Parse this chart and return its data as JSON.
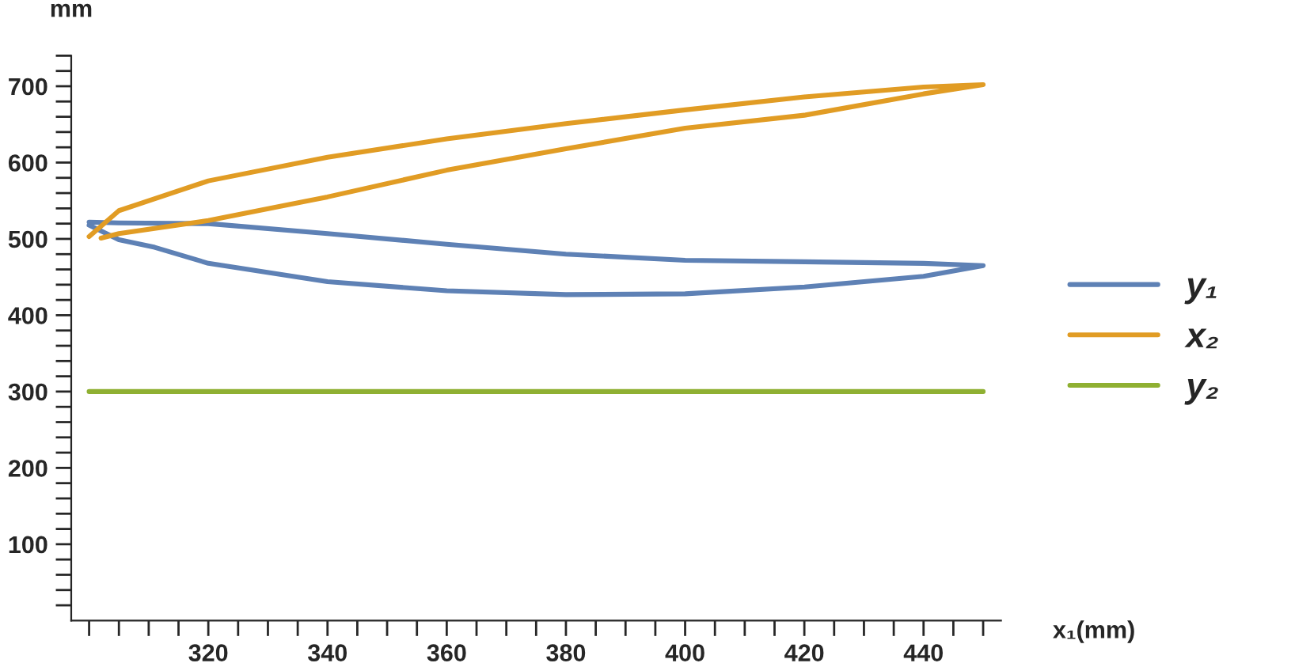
{
  "chart_data": {
    "type": "line",
    "xlabel": "x₁(mm)",
    "ylabel": "mm",
    "xlim": [
      297,
      453
    ],
    "ylim": [
      0,
      740
    ],
    "xticks": [
      {
        "value": 300,
        "label": null
      },
      {
        "value": 305,
        "label": null
      },
      {
        "value": 310,
        "label": null
      },
      {
        "value": 315,
        "label": null
      },
      320,
      {
        "value": 325,
        "label": null
      },
      {
        "value": 330,
        "label": null
      },
      {
        "value": 335,
        "label": null
      },
      340,
      {
        "value": 345,
        "label": null
      },
      {
        "value": 350,
        "label": null
      },
      {
        "value": 355,
        "label": null
      },
      360,
      {
        "value": 365,
        "label": null
      },
      {
        "value": 370,
        "label": null
      },
      {
        "value": 375,
        "label": null
      },
      380,
      {
        "value": 385,
        "label": null
      },
      {
        "value": 390,
        "label": null
      },
      {
        "value": 395,
        "label": null
      },
      400,
      {
        "value": 405,
        "label": null
      },
      {
        "value": 410,
        "label": null
      },
      {
        "value": 415,
        "label": null
      },
      420,
      {
        "value": 425,
        "label": null
      },
      {
        "value": 430,
        "label": null
      },
      {
        "value": 435,
        "label": null
      },
      440,
      {
        "value": 445,
        "label": null
      },
      {
        "value": 450,
        "label": null
      }
    ],
    "yticks": [
      {
        "value": 20,
        "label": null
      },
      {
        "value": 40,
        "label": null
      },
      {
        "value": 60,
        "label": null
      },
      {
        "value": 80,
        "label": null
      },
      100,
      {
        "value": 120,
        "label": null
      },
      {
        "value": 140,
        "label": null
      },
      {
        "value": 160,
        "label": null
      },
      {
        "value": 180,
        "label": null
      },
      200,
      {
        "value": 220,
        "label": null
      },
      {
        "value": 240,
        "label": null
      },
      {
        "value": 260,
        "label": null
      },
      {
        "value": 280,
        "label": null
      },
      300,
      {
        "value": 320,
        "label": null
      },
      {
        "value": 340,
        "label": null
      },
      {
        "value": 360,
        "label": null
      },
      {
        "value": 380,
        "label": null
      },
      400,
      {
        "value": 420,
        "label": null
      },
      {
        "value": 440,
        "label": null
      },
      {
        "value": 460,
        "label": null
      },
      {
        "value": 480,
        "label": null
      },
      500,
      {
        "value": 520,
        "label": null
      },
      {
        "value": 540,
        "label": null
      },
      {
        "value": 560,
        "label": null
      },
      {
        "value": 580,
        "label": null
      },
      600,
      {
        "value": 620,
        "label": null
      },
      {
        "value": 640,
        "label": null
      },
      {
        "value": 660,
        "label": null
      },
      {
        "value": 680,
        "label": null
      },
      700,
      {
        "value": 720,
        "label": null
      },
      {
        "value": 740,
        "label": null
      }
    ],
    "grid": false,
    "legend": "right",
    "marker": "none",
    "line_style": "solid",
    "series": [
      {
        "name": "y₁",
        "color": "#5e81b5",
        "x": [
          300,
          305,
          320,
          340,
          360,
          380,
          400,
          420,
          440,
          450,
          440,
          420,
          400,
          380,
          360,
          340,
          320,
          311,
          305,
          300
        ],
        "values": [
          522,
          521,
          520,
          507,
          493,
          480,
          472,
          470,
          468,
          465,
          451,
          437,
          428,
          427,
          432,
          444,
          468,
          489,
          499,
          518
        ]
      },
      {
        "name": "x₂",
        "color": "#e19c24",
        "x": [
          300,
          305,
          320,
          340,
          360,
          380,
          400,
          420,
          440,
          450,
          440,
          420,
          400,
          380,
          360,
          340,
          320,
          305,
          302
        ],
        "values": [
          503,
          537,
          576,
          607,
          631,
          651,
          669,
          686,
          699,
          702,
          690,
          662,
          645,
          618,
          590,
          555,
          524,
          507,
          501
        ]
      },
      {
        "name": "y₂",
        "color": "#8fb032",
        "x": [
          300,
          450
        ],
        "values": [
          300,
          300
        ]
      }
    ]
  }
}
